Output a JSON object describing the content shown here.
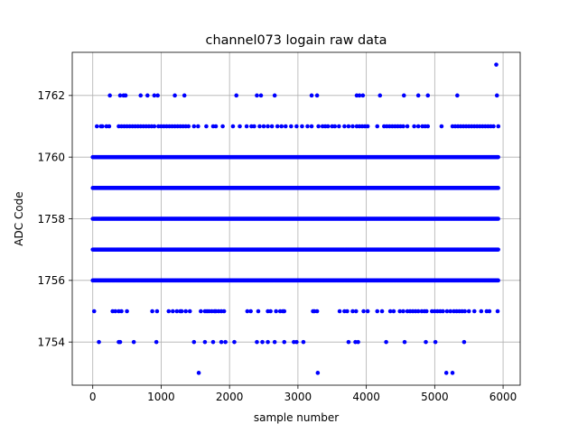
{
  "chart_data": {
    "type": "scatter",
    "title": "channel073 logain raw data",
    "xlabel": "sample number",
    "ylabel": "ADC Code",
    "xlim": [
      -300,
      6250
    ],
    "ylim": [
      1752.6,
      1763.4
    ],
    "xticks": [
      0,
      1000,
      2000,
      3000,
      4000,
      5000,
      6000
    ],
    "yticks": [
      1754,
      1756,
      1758,
      1760,
      1762
    ],
    "grid": true,
    "marker_color": "#0000ff",
    "dense_levels": [
      1756,
      1757,
      1758,
      1759,
      1760
    ],
    "dense_x_range": [
      0,
      5940
    ],
    "points": {
      "1763": [
        5900
      ],
      "1762": [
        250,
        400,
        450,
        480,
        700,
        800,
        900,
        950,
        1200,
        1340,
        2100,
        2400,
        2460,
        2660,
        3200,
        3280,
        3860,
        3900,
        3950,
        4200,
        4550,
        4760,
        4900,
        5330,
        5910
      ],
      "1761": [
        60,
        120,
        140,
        200,
        240,
        380,
        420,
        460,
        500,
        540,
        580,
        620,
        660,
        700,
        740,
        780,
        820,
        860,
        900,
        960,
        1000,
        1040,
        1080,
        1120,
        1160,
        1200,
        1240,
        1280,
        1320,
        1360,
        1400,
        1480,
        1540,
        1660,
        1760,
        1800,
        1900,
        2050,
        2150,
        2250,
        2320,
        2360,
        2440,
        2500,
        2560,
        2620,
        2700,
        2760,
        2820,
        2900,
        2980,
        3060,
        3140,
        3200,
        3300,
        3360,
        3400,
        3440,
        3500,
        3540,
        3600,
        3680,
        3740,
        3800,
        3860,
        3900,
        3940,
        3980,
        4020,
        4160,
        4260,
        4300,
        4340,
        4380,
        4420,
        4460,
        4500,
        4540,
        4600,
        4700,
        4760,
        4820,
        4860,
        4900,
        5100,
        5260,
        5300,
        5340,
        5380,
        5420,
        5460,
        5500,
        5540,
        5580,
        5620,
        5660,
        5700,
        5740,
        5780,
        5820,
        5860,
        5930
      ],
      "1755": [
        20,
        290,
        330,
        380,
        420,
        500,
        870,
        940,
        1110,
        1170,
        1230,
        1280,
        1300,
        1360,
        1420,
        1580,
        1640,
        1670,
        1700,
        1740,
        1780,
        1800,
        1840,
        1880,
        1920,
        2260,
        2310,
        2420,
        2560,
        2600,
        2680,
        2740,
        2780,
        2800,
        3220,
        3240,
        3280,
        3610,
        3680,
        3720,
        3800,
        3850,
        3960,
        4020,
        4160,
        4230,
        4350,
        4400,
        4490,
        4540,
        4600,
        4640,
        4680,
        4720,
        4760,
        4810,
        4850,
        4880,
        4960,
        5000,
        5040,
        5080,
        5120,
        5180,
        5230,
        5280,
        5320,
        5360,
        5400,
        5440,
        5500,
        5580,
        5680,
        5760,
        5800,
        5920
      ],
      "1754": [
        90,
        380,
        400,
        600,
        930,
        1480,
        1640,
        1760,
        1880,
        1940,
        2070,
        2400,
        2480,
        2560,
        2660,
        2800,
        2940,
        2980,
        3080,
        3740,
        3840,
        3880,
        4290,
        4560,
        4870,
        5010,
        5430
      ],
      "1753": [
        1550,
        3290,
        5170,
        5260
      ]
    }
  }
}
